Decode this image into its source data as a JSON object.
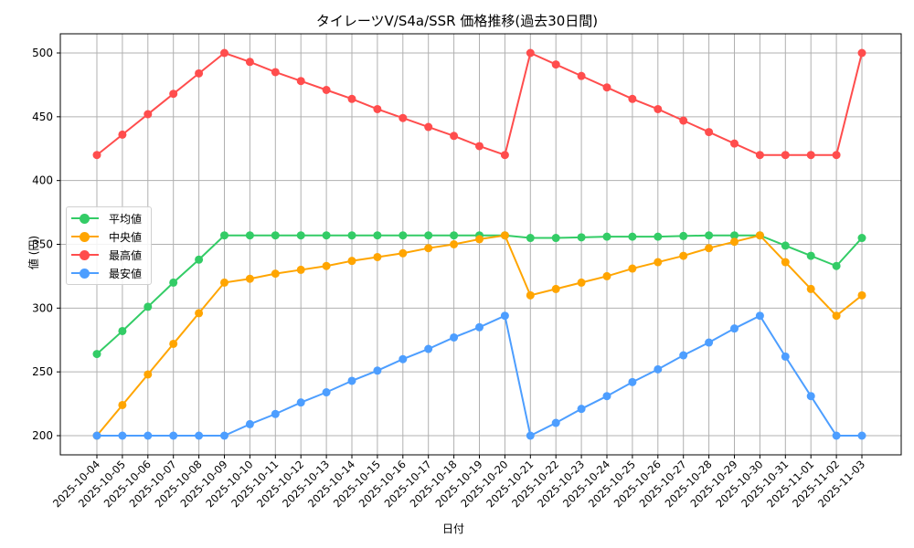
{
  "chart_data": {
    "type": "line",
    "title": "タイレーツV/S4a/SSR 価格推移(過去30日間)",
    "xlabel": "日付",
    "ylabel": "値 (円)",
    "ylim": [
      185,
      515
    ],
    "yticks": [
      200,
      250,
      300,
      350,
      400,
      450,
      500
    ],
    "grid": true,
    "legend_position": "center left",
    "x": [
      "2025-10-04",
      "2025-10-05",
      "2025-10-06",
      "2025-10-07",
      "2025-10-08",
      "2025-10-09",
      "2025-10-10",
      "2025-10-11",
      "2025-10-12",
      "2025-10-13",
      "2025-10-14",
      "2025-10-15",
      "2025-10-16",
      "2025-10-17",
      "2025-10-18",
      "2025-10-19",
      "2025-10-20",
      "2025-10-21",
      "2025-10-22",
      "2025-10-23",
      "2025-10-24",
      "2025-10-25",
      "2025-10-26",
      "2025-10-27",
      "2025-10-28",
      "2025-10-29",
      "2025-10-30",
      "2025-10-31",
      "2025-11-01",
      "2025-11-02",
      "2025-11-03"
    ],
    "series": [
      {
        "name": "平均値",
        "color": "#33cc66",
        "values": [
          264,
          282,
          301,
          320,
          338,
          357,
          357,
          357,
          357,
          357,
          357,
          357,
          357,
          357,
          357,
          357,
          357,
          355,
          355,
          355.5,
          356,
          356,
          356,
          356.5,
          357,
          357,
          357,
          349,
          341,
          333,
          355
        ]
      },
      {
        "name": "中央値",
        "color": "#ffa500",
        "values": [
          200,
          224,
          248,
          272,
          296,
          320,
          323,
          327,
          330,
          333,
          337,
          340,
          343,
          347,
          350,
          354,
          357,
          310,
          315,
          320,
          325,
          331,
          336,
          341,
          347,
          352,
          357,
          336,
          315,
          294,
          310
        ]
      },
      {
        "name": "最高値",
        "color": "#ff4d4d",
        "values": [
          420,
          436,
          452,
          468,
          484,
          500,
          493,
          485,
          478,
          471,
          464,
          456,
          449,
          442,
          435,
          427,
          420,
          500,
          491,
          482,
          473,
          464,
          456,
          447,
          438,
          429,
          420,
          420,
          420,
          420,
          500
        ]
      },
      {
        "name": "最安値",
        "color": "#4d9eff",
        "values": [
          200,
          200,
          200,
          200,
          200,
          200,
          209,
          217,
          226,
          234,
          243,
          251,
          260,
          268,
          277,
          285,
          294,
          200,
          210,
          221,
          231,
          242,
          252,
          263,
          273,
          284,
          294,
          262,
          231,
          200,
          200
        ]
      }
    ]
  },
  "legend": {
    "items": [
      {
        "label": "平均値",
        "color": "#33cc66"
      },
      {
        "label": "中央値",
        "color": "#ffa500"
      },
      {
        "label": "最高値",
        "color": "#ff4d4d"
      },
      {
        "label": "最安値",
        "color": "#4d9eff"
      }
    ]
  }
}
